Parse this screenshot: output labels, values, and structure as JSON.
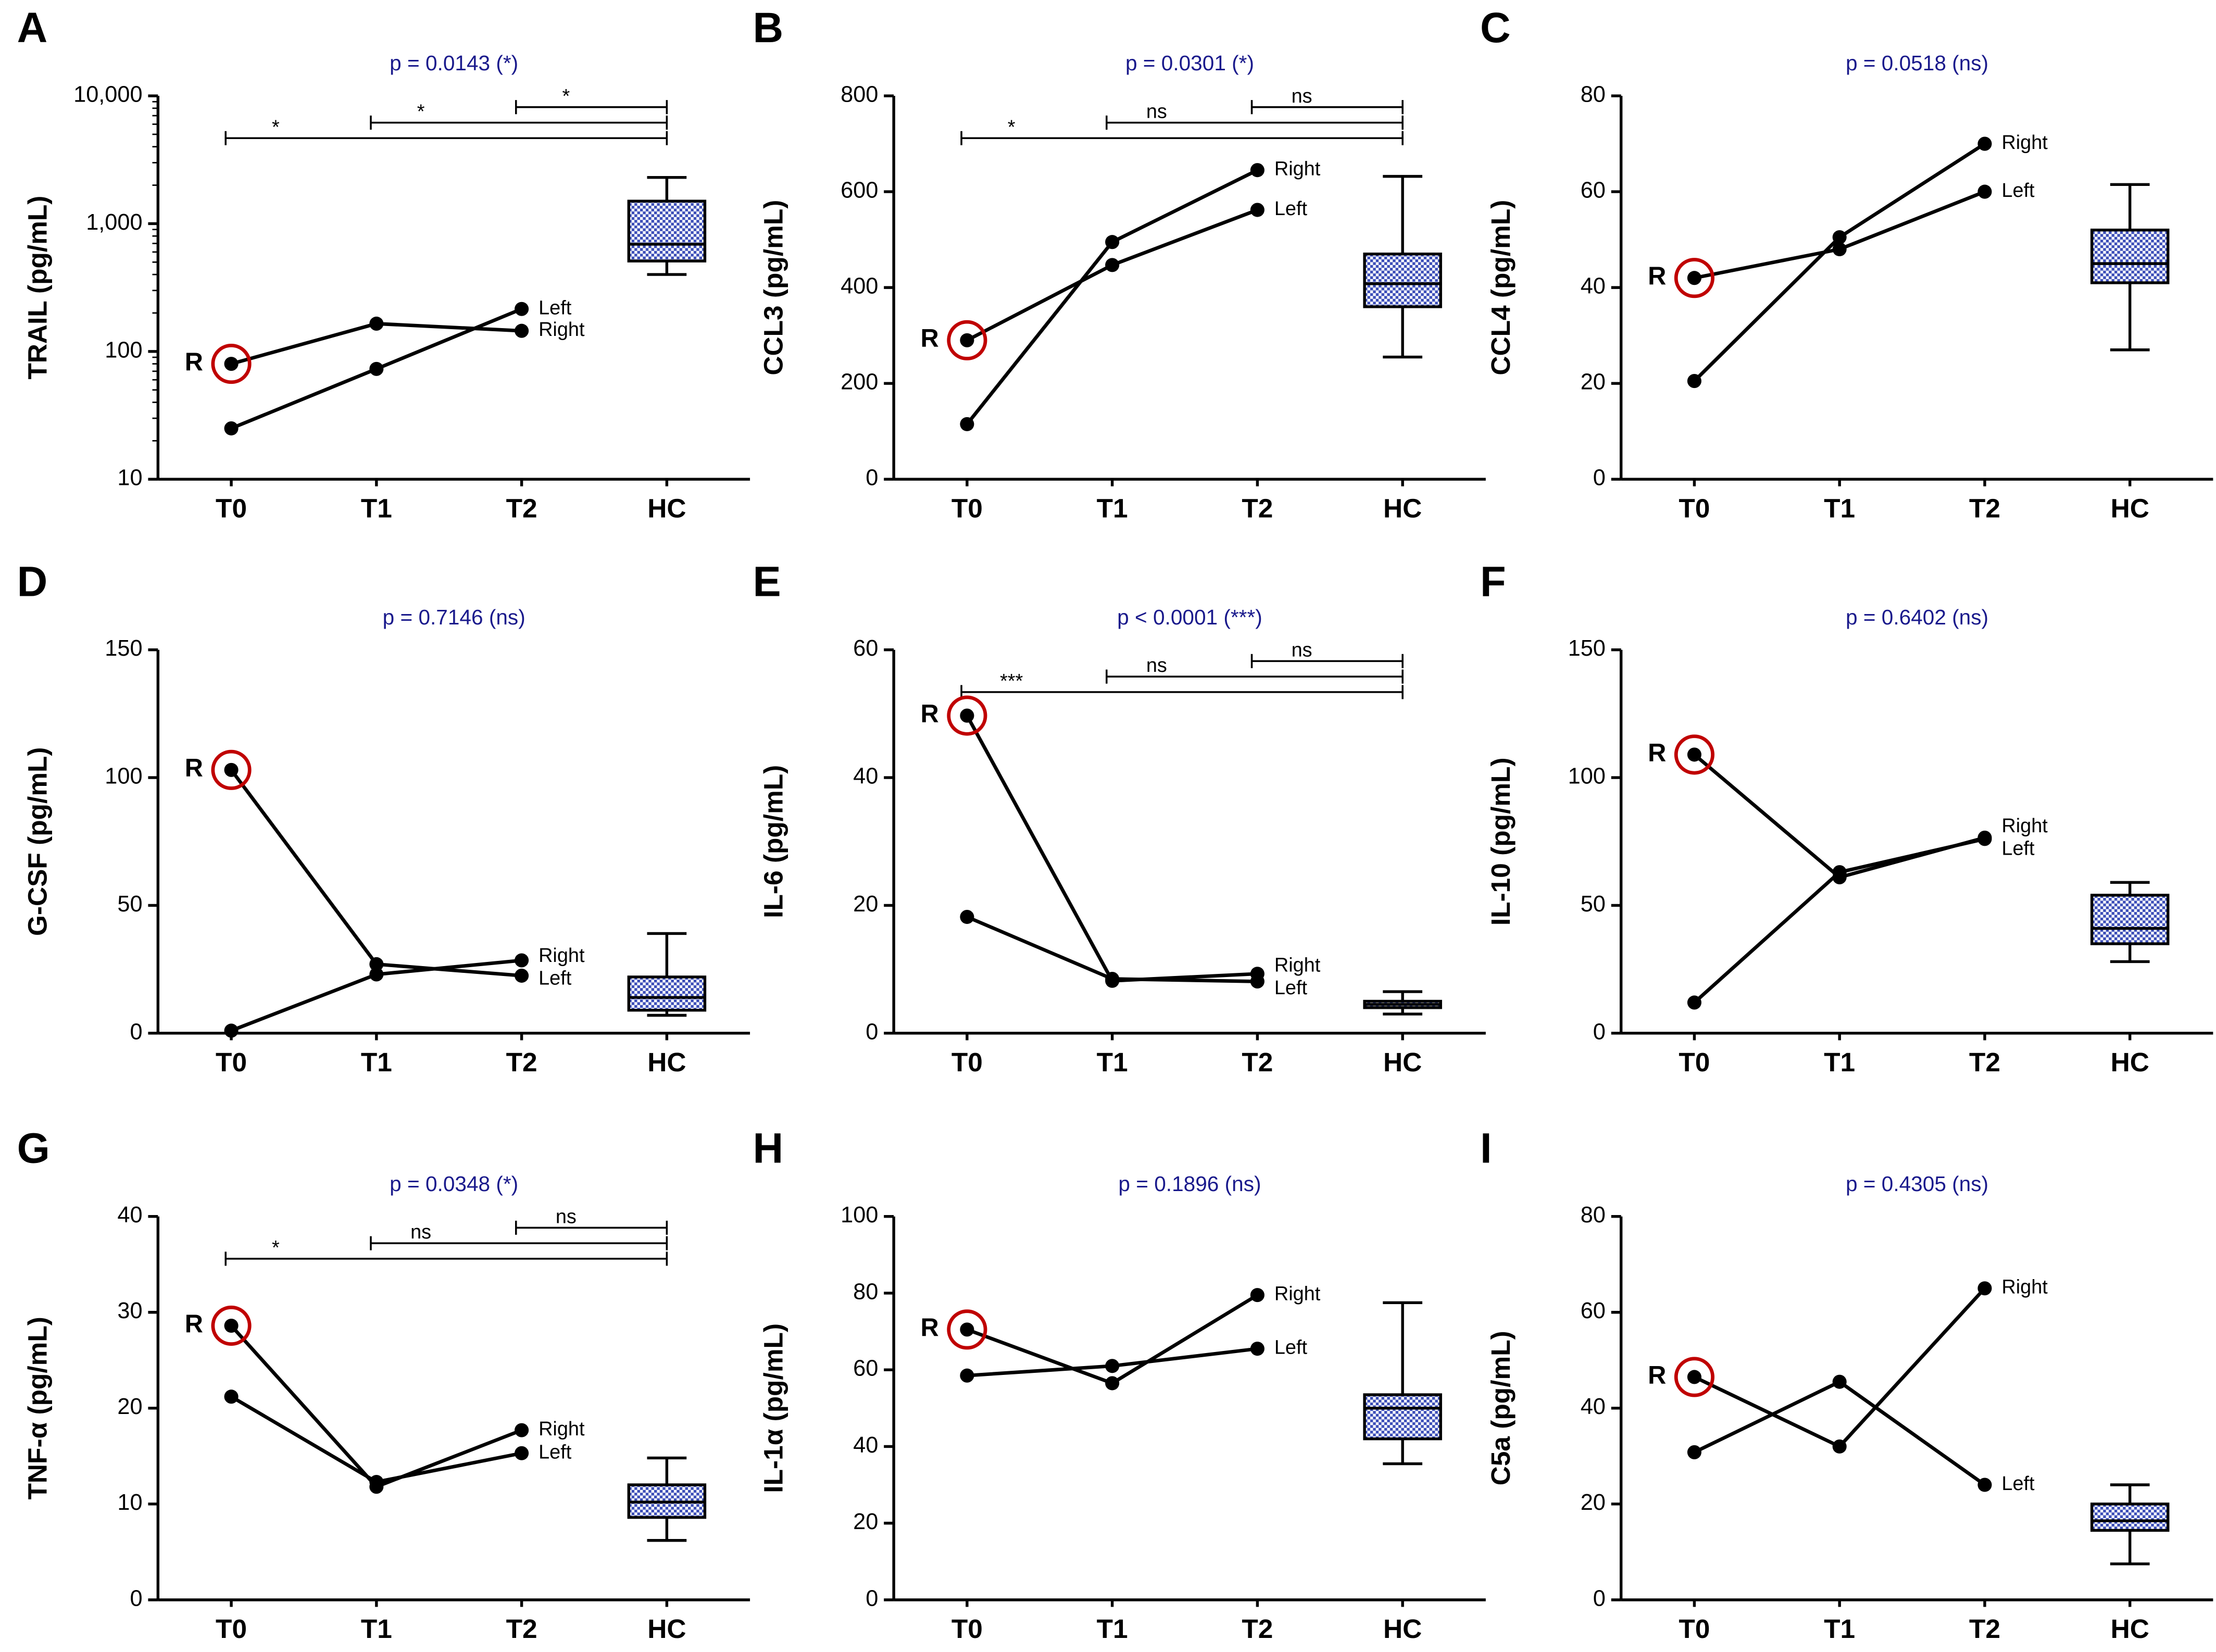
{
  "chart_data": [
    {
      "type": "line",
      "panel": "A",
      "ylabel": "TRAIL (pg/mL)",
      "subtitle": "p = 0.0143 (*)",
      "log": true,
      "categories": [
        "T0",
        "T1",
        "T2",
        "HC"
      ],
      "ylim": [
        10,
        10000
      ],
      "yticks": [
        10,
        100,
        {
          "value": 1000,
          "label": "1,000"
        },
        {
          "value": 10000,
          "label": "10,000"
        }
      ],
      "series": [
        {
          "name": "Right",
          "color": "#000000",
          "values": [
            80,
            165,
            145,
            null
          ]
        },
        {
          "name": "Left",
          "color": "#000000",
          "values": [
            25,
            73,
            215,
            null
          ]
        }
      ],
      "box": {
        "min": 400,
        "q1": 510,
        "median": 690,
        "q3": 1500,
        "max": 2300
      },
      "brackets": [
        {
          "from": "T0",
          "to": "HC",
          "label": "*"
        },
        {
          "from": "T1",
          "to": "HC",
          "label": "*"
        },
        {
          "from": "T2",
          "to": "HC",
          "label": "*"
        }
      ],
      "annotation": {
        "text": "R",
        "series": "Right",
        "x": "T0"
      }
    },
    {
      "type": "line",
      "panel": "B",
      "ylabel": "CCL3 (pg/mL)",
      "subtitle": "p = 0.0301 (*)",
      "categories": [
        "T0",
        "T1",
        "T2",
        "HC"
      ],
      "ylim": [
        0,
        800
      ],
      "yticks": [
        0,
        200,
        400,
        600,
        800
      ],
      "series": [
        {
          "name": "Right",
          "color": "#000000",
          "values": [
            115,
            495,
            645,
            null
          ]
        },
        {
          "name": "Left",
          "color": "#000000",
          "values": [
            290,
            447,
            562,
            null
          ]
        }
      ],
      "box": {
        "min": 255,
        "q1": 360,
        "median": 408,
        "q3": 470,
        "max": 632
      },
      "brackets": [
        {
          "from": "T0",
          "to": "HC",
          "label": "*"
        },
        {
          "from": "T1",
          "to": "HC",
          "label": "ns"
        },
        {
          "from": "T2",
          "to": "HC",
          "label": "ns"
        }
      ],
      "annotation": {
        "text": "R",
        "series": "Left",
        "x": "T0"
      }
    },
    {
      "type": "line",
      "panel": "C",
      "ylabel": "CCL4 (pg/mL)",
      "subtitle": "p = 0.0518 (ns)",
      "categories": [
        "T0",
        "T1",
        "T2",
        "HC"
      ],
      "ylim": [
        0,
        80
      ],
      "yticks": [
        0,
        20,
        40,
        60,
        80
      ],
      "series": [
        {
          "name": "Right",
          "color": "#000000",
          "values": [
            20.5,
            50.5,
            70,
            null
          ]
        },
        {
          "name": "Left",
          "color": "#000000",
          "values": [
            42,
            48,
            60,
            null
          ]
        }
      ],
      "box": {
        "min": 27,
        "q1": 41,
        "median": 45,
        "q3": 52,
        "max": 61.5
      },
      "brackets": [],
      "annotation": {
        "text": "R",
        "series": "Left",
        "x": "T0"
      }
    },
    {
      "type": "line",
      "panel": "D",
      "ylabel": "G-CSF (pg/mL)",
      "subtitle": "p = 0.7146 (ns)",
      "categories": [
        "T0",
        "T1",
        "T2",
        "HC"
      ],
      "ylim": [
        0,
        150
      ],
      "yticks": [
        0,
        50,
        100,
        150
      ],
      "series": [
        {
          "name": "Right",
          "color": "#000000",
          "values": [
            1,
            23,
            28.5,
            null
          ]
        },
        {
          "name": "Left",
          "color": "#000000",
          "values": [
            103,
            27,
            22.5,
            null
          ]
        }
      ],
      "box": {
        "min": 7,
        "q1": 9,
        "median": 14,
        "q3": 22,
        "max": 39
      },
      "brackets": [],
      "annotation": {
        "text": "R",
        "series": "Left",
        "x": "T0"
      }
    },
    {
      "type": "line",
      "panel": "E",
      "ylabel": "IL-6 (pg/mL)",
      "subtitle": "p < 0.0001 (***)",
      "categories": [
        "T0",
        "T1",
        "T2",
        "HC"
      ],
      "ylim": [
        0,
        60
      ],
      "yticks": [
        0,
        20,
        40,
        60
      ],
      "series": [
        {
          "name": "Right",
          "color": "#000000",
          "values": [
            49.7,
            8.2,
            9.3,
            null
          ]
        },
        {
          "name": "Left",
          "color": "#000000",
          "values": [
            18.2,
            8.5,
            8.1,
            null
          ]
        }
      ],
      "box": {
        "min": 3,
        "q1": 4,
        "median": 4.5,
        "q3": 5,
        "max": 6.5
      },
      "brackets": [
        {
          "from": "T0",
          "to": "HC",
          "label": "***"
        },
        {
          "from": "T1",
          "to": "HC",
          "label": "ns"
        },
        {
          "from": "T2",
          "to": "HC",
          "label": "ns"
        }
      ],
      "annotation": {
        "text": "R",
        "series": "Right",
        "x": "T0"
      }
    },
    {
      "type": "line",
      "panel": "F",
      "ylabel": "IL-10 (pg/mL)",
      "subtitle": "p = 0.6402 (ns)",
      "categories": [
        "T0",
        "T1",
        "T2",
        "HC"
      ],
      "ylim": [
        0,
        150
      ],
      "yticks": [
        0,
        50,
        100,
        150
      ],
      "series": [
        {
          "name": "Right",
          "color": "#000000",
          "values": [
            109,
            61,
            76.5,
            null
          ]
        },
        {
          "name": "Left",
          "color": "#000000",
          "values": [
            12,
            63,
            76,
            null
          ]
        }
      ],
      "box": {
        "min": 28,
        "q1": 35,
        "median": 41,
        "q3": 54,
        "max": 59
      },
      "brackets": [],
      "annotation": {
        "text": "R",
        "series": "Right",
        "x": "T0"
      }
    },
    {
      "type": "line",
      "panel": "G",
      "ylabel": "TNF-α (pg/mL)",
      "subtitle": "p = 0.0348 (*)",
      "categories": [
        "T0",
        "T1",
        "T2",
        "HC"
      ],
      "ylim": [
        0,
        40
      ],
      "yticks": [
        0,
        10,
        20,
        30,
        40
      ],
      "series": [
        {
          "name": "Right",
          "color": "#000000",
          "values": [
            28.6,
            11.8,
            17.7,
            null
          ]
        },
        {
          "name": "Left",
          "color": "#000000",
          "values": [
            21.2,
            12.3,
            15.3,
            null
          ]
        }
      ],
      "box": {
        "min": 6.2,
        "q1": 8.6,
        "median": 10.2,
        "q3": 12,
        "max": 14.8
      },
      "brackets": [
        {
          "from": "T0",
          "to": "HC",
          "label": "*"
        },
        {
          "from": "T1",
          "to": "HC",
          "label": "ns"
        },
        {
          "from": "T2",
          "to": "HC",
          "label": "ns"
        }
      ],
      "annotation": {
        "text": "R",
        "series": "Right",
        "x": "T0"
      }
    },
    {
      "type": "line",
      "panel": "H",
      "ylabel": "IL-1α (pg/mL)",
      "subtitle": "p = 0.1896 (ns)",
      "categories": [
        "T0",
        "T1",
        "T2",
        "HC"
      ],
      "ylim": [
        0,
        100
      ],
      "yticks": [
        0,
        20,
        40,
        60,
        80,
        100
      ],
      "series": [
        {
          "name": "Right",
          "color": "#000000",
          "values": [
            70.5,
            56.5,
            79.5,
            null
          ]
        },
        {
          "name": "Left",
          "color": "#000000",
          "values": [
            58.5,
            61,
            65.5,
            null
          ]
        }
      ],
      "box": {
        "min": 35.5,
        "q1": 42,
        "median": 50,
        "q3": 53.5,
        "max": 77.5
      },
      "brackets": [],
      "annotation": {
        "text": "R",
        "series": "Right",
        "x": "T0"
      }
    },
    {
      "type": "line",
      "panel": "I",
      "ylabel": "C5a (pg/mL)",
      "subtitle": "p = 0.4305 (ns)",
      "categories": [
        "T0",
        "T1",
        "T2",
        "HC"
      ],
      "ylim": [
        0,
        80
      ],
      "yticks": [
        0,
        20,
        40,
        60,
        80
      ],
      "series": [
        {
          "name": "Right",
          "color": "#000000",
          "values": [
            46.5,
            32,
            65,
            null
          ]
        },
        {
          "name": "Left",
          "color": "#000000",
          "values": [
            30.8,
            45.5,
            24,
            null
          ]
        }
      ],
      "box": {
        "min": 7.5,
        "q1": 14.5,
        "median": 16.5,
        "q3": 20,
        "max": 24
      },
      "brackets": [],
      "annotation": {
        "text": "R",
        "series": "Right",
        "x": "T0"
      }
    }
  ]
}
